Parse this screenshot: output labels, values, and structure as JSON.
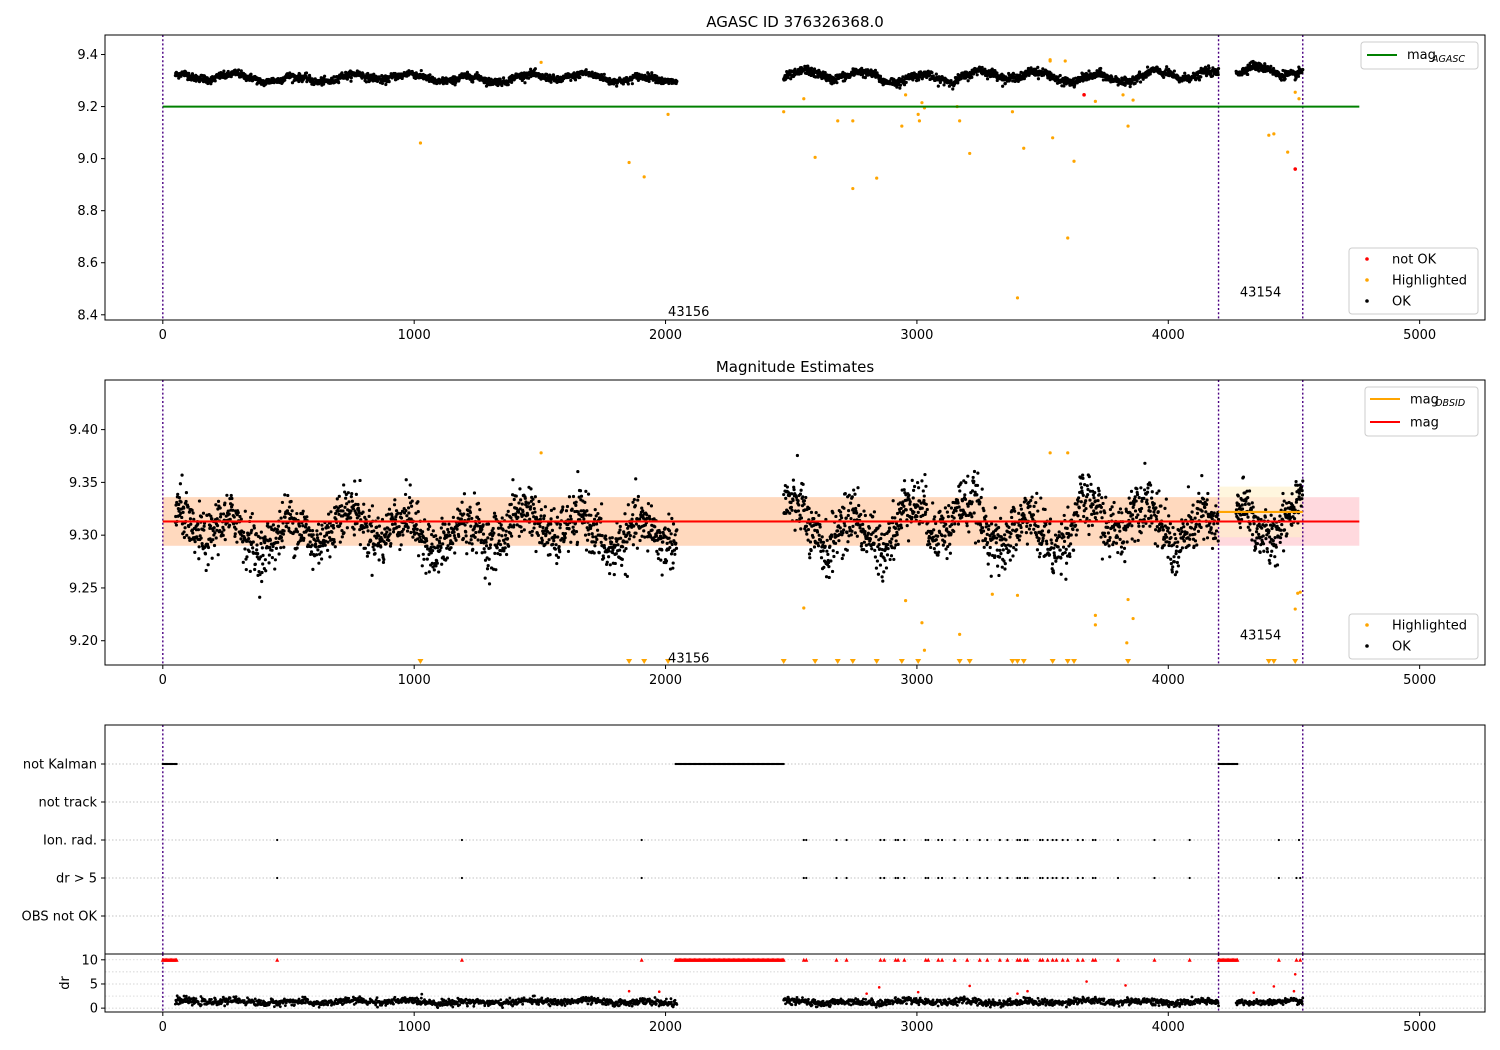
{
  "chart_data": [
    {
      "id": "agasc",
      "type": "scatter",
      "title": "AGASC ID 376326368.0",
      "xlim": [
        -230,
        5260
      ],
      "ylim": [
        8.38,
        9.475
      ],
      "xticks": [
        0,
        1000,
        2000,
        3000,
        4000,
        5000
      ],
      "xtick_labels": [
        "0",
        "1000",
        "2000",
        "3000",
        "4000",
        "5000"
      ],
      "yticks": [
        8.4,
        8.6,
        8.8,
        9.0,
        9.2,
        9.4
      ],
      "ytick_labels": [
        "8.4",
        "8.6",
        "8.8",
        "9.0",
        "9.2",
        "9.4"
      ],
      "obsid_boundaries": [
        0,
        4200,
        4535
      ],
      "obsid_labels": [
        {
          "text": "43156",
          "x": 2010,
          "y": 8.41
        },
        {
          "text": "43154",
          "x": 4285,
          "y": 8.485
        }
      ],
      "reference_lines": [
        {
          "label": "mag_AGASC",
          "y": 9.2,
          "x": [
            0,
            4760
          ],
          "color": "#008000"
        }
      ],
      "ok_segments": [
        {
          "x0": 50,
          "x1": 2045,
          "n": 1500,
          "mean": 9.31,
          "amp": 0.022,
          "noise": 0.007
        },
        {
          "x0": 2470,
          "x1": 4200,
          "n": 1300,
          "mean": 9.315,
          "amp": 0.03,
          "noise": 0.008
        },
        {
          "x0": 4270,
          "x1": 4535,
          "n": 220,
          "mean": 9.33,
          "amp": 0.03,
          "noise": 0.008
        }
      ],
      "highlighted_points": [
        [
          1025,
          9.06
        ],
        [
          1505,
          9.37
        ],
        [
          2010,
          9.17
        ],
        [
          1855,
          8.985
        ],
        [
          1915,
          8.93
        ],
        [
          2470,
          9.18
        ],
        [
          2550,
          9.23
        ],
        [
          2595,
          9.005
        ],
        [
          2685,
          9.145
        ],
        [
          2745,
          9.145
        ],
        [
          2745,
          8.885
        ],
        [
          2840,
          8.925
        ],
        [
          2940,
          9.125
        ],
        [
          2955,
          9.245
        ],
        [
          3005,
          9.17
        ],
        [
          3010,
          9.145
        ],
        [
          3020,
          9.215
        ],
        [
          3030,
          9.195
        ],
        [
          3160,
          9.2
        ],
        [
          3170,
          9.145
        ],
        [
          3210,
          9.02
        ],
        [
          3380,
          9.18
        ],
        [
          3400,
          8.465
        ],
        [
          3425,
          9.04
        ],
        [
          3540,
          9.08
        ],
        [
          3600,
          8.695
        ],
        [
          3625,
          8.99
        ],
        [
          3710,
          9.22
        ],
        [
          3820,
          9.245
        ],
        [
          3840,
          9.125
        ],
        [
          3860,
          9.225
        ],
        [
          4400,
          9.09
        ],
        [
          4420,
          9.095
        ],
        [
          4475,
          9.025
        ],
        [
          4520,
          9.23
        ],
        [
          4505,
          9.255
        ],
        [
          3530,
          9.375
        ],
        [
          3590,
          9.375
        ],
        [
          3530,
          9.38
        ]
      ],
      "notok_points": [
        [
          3665,
          9.245
        ],
        [
          4505,
          8.96
        ]
      ],
      "legend": [
        {
          "label": "not OK",
          "color": "#ff0000"
        },
        {
          "label": "Highlighted",
          "color": "#ffa500"
        },
        {
          "label": "OK",
          "color": "#000000"
        }
      ],
      "line_legend": [
        {
          "label": "mag",
          "sub": "AGASC",
          "color": "#008000"
        }
      ]
    },
    {
      "id": "magest",
      "type": "scatter",
      "title": "Magnitude Estimates",
      "xlim": [
        -230,
        5260
      ],
      "ylim": [
        9.177,
        9.447
      ],
      "xticks": [
        0,
        1000,
        2000,
        3000,
        4000,
        5000
      ],
      "xtick_labels": [
        "0",
        "1000",
        "2000",
        "3000",
        "4000",
        "5000"
      ],
      "yticks": [
        9.2,
        9.25,
        9.3,
        9.35,
        9.4
      ],
      "ytick_labels": [
        "9.20",
        "9.25",
        "9.30",
        "9.35",
        "9.40"
      ],
      "obsid_boundaries": [
        0,
        4200,
        4535
      ],
      "obsid_labels": [
        {
          "text": "43156",
          "x": 2010,
          "y": 9.183
        },
        {
          "text": "43154",
          "x": 4285,
          "y": 9.205
        }
      ],
      "mag_line": {
        "y": 9.313,
        "x": [
          0,
          4760
        ],
        "band": [
          9.29,
          9.336
        ],
        "color": "#ff0000",
        "band_color": "#ffc0c8"
      },
      "obsid_mag_lines": [
        {
          "y": 9.313,
          "x": [
            0,
            4200
          ],
          "band": [
            9.29,
            9.336
          ],
          "color": "#ffa500",
          "band_color": "#ffd9a8"
        },
        {
          "y": 9.322,
          "x": [
            4200,
            4535
          ],
          "band": [
            9.298,
            9.346
          ],
          "color": "#ffa500",
          "band_color": "#fff0c8"
        }
      ],
      "ok_segments": [
        {
          "x0": 50,
          "x1": 2045,
          "n": 1500,
          "mean": 9.305,
          "amp": 0.025,
          "noise": 0.012
        },
        {
          "x0": 2470,
          "x1": 4200,
          "n": 1300,
          "mean": 9.31,
          "amp": 0.032,
          "noise": 0.013
        },
        {
          "x0": 4270,
          "x1": 4535,
          "n": 220,
          "mean": 9.32,
          "amp": 0.03,
          "noise": 0.012
        }
      ],
      "highlighted_points": [
        [
          2550,
          9.231
        ],
        [
          2955,
          9.238
        ],
        [
          3020,
          9.217
        ],
        [
          3030,
          9.191
        ],
        [
          3170,
          9.206
        ],
        [
          3300,
          9.244
        ],
        [
          3400,
          9.243
        ],
        [
          3710,
          9.215
        ],
        [
          3710,
          9.224
        ],
        [
          3835,
          9.198
        ],
        [
          3840,
          9.239
        ],
        [
          3860,
          9.221
        ],
        [
          4505,
          9.23
        ],
        [
          4515,
          9.245
        ],
        [
          4525,
          9.246
        ],
        [
          1505,
          9.378
        ],
        [
          3530,
          9.378
        ],
        [
          3600,
          9.378
        ]
      ],
      "clipped_markers": [
        1025,
        1855,
        1915,
        2010,
        2470,
        2595,
        2685,
        2745,
        2840,
        2940,
        3005,
        3170,
        3210,
        3380,
        3400,
        3425,
        3540,
        3600,
        3625,
        3840,
        4400,
        4420,
        4505
      ],
      "legend": [
        {
          "label": "Highlighted",
          "color": "#ffa500"
        },
        {
          "label": "OK",
          "color": "#000000"
        }
      ],
      "line_legend": [
        {
          "label": "mag",
          "sub": "OBSID",
          "color": "#ffa500"
        },
        {
          "label": "mag",
          "sub": "",
          "color": "#ff0000"
        }
      ]
    },
    {
      "id": "flags",
      "type": "scatter",
      "xlim": [
        -230,
        5260
      ],
      "categories": [
        "not Kalman",
        "not track",
        "Ion. rad.",
        "dr > 5",
        "OBS not OK"
      ],
      "obsid_boundaries": [
        0,
        4200,
        4535
      ],
      "not_kalman_ranges": [
        [
          0,
          55
        ],
        [
          2040,
          2470
        ],
        [
          4200,
          4275
        ]
      ],
      "ion_rad_x": [
        455,
        1190,
        1905,
        2550,
        2560,
        2680,
        2720,
        2855,
        2870,
        2915,
        2925,
        2950,
        3035,
        3045,
        3085,
        3100,
        3150,
        3200,
        3250,
        3280,
        3330,
        3360,
        3400,
        3410,
        3430,
        3440,
        3490,
        3500,
        3520,
        3540,
        3555,
        3580,
        3600,
        3640,
        3660,
        3700,
        3710,
        3800,
        3945,
        4085,
        4440,
        4520
      ],
      "dr5_x": [
        455,
        1190,
        1905,
        2550,
        2560,
        2680,
        2720,
        2855,
        2870,
        2915,
        2925,
        2950,
        3035,
        3045,
        3085,
        3100,
        3150,
        3200,
        3250,
        3280,
        3330,
        3360,
        3400,
        3410,
        3430,
        3440,
        3490,
        3500,
        3520,
        3540,
        3555,
        3580,
        3600,
        3640,
        3660,
        3700,
        3710,
        3800,
        3945,
        4085,
        4440,
        4510,
        4525
      ]
    },
    {
      "id": "dr",
      "type": "scatter",
      "xlim": [
        -230,
        5260
      ],
      "ylim": [
        -0.8,
        11.2
      ],
      "ylabel": "dr",
      "yticks": [
        0,
        5,
        10
      ],
      "ytick_labels": [
        "0",
        "5",
        "10"
      ],
      "xticks": [
        0,
        1000,
        2000,
        3000,
        4000,
        5000
      ],
      "xtick_labels": [
        "0",
        "1000",
        "2000",
        "3000",
        "4000",
        "5000"
      ],
      "obsid_boundaries": [
        0,
        4200,
        4535
      ],
      "cap_value": 10,
      "cap_ranges": [
        [
          0,
          55
        ],
        [
          2040,
          2470
        ],
        [
          4200,
          4275
        ]
      ],
      "cap_points_x": [
        455,
        1190,
        1905,
        2550,
        2560,
        2680,
        2720,
        2855,
        2870,
        2915,
        2925,
        2950,
        3035,
        3045,
        3085,
        3100,
        3150,
        3200,
        3250,
        3280,
        3330,
        3360,
        3400,
        3410,
        3430,
        3440,
        3490,
        3500,
        3520,
        3540,
        3555,
        3580,
        3600,
        3640,
        3660,
        3700,
        3710,
        3800,
        3945,
        4085,
        4440,
        4510,
        4525
      ],
      "red_points": [
        [
          1855,
          3.5
        ],
        [
          1975,
          3.4
        ],
        [
          2800,
          3.0
        ],
        [
          2850,
          4.3
        ],
        [
          3005,
          3.3
        ],
        [
          3210,
          4.6
        ],
        [
          3400,
          3.0
        ],
        [
          3440,
          3.5
        ],
        [
          3675,
          5.5
        ],
        [
          3830,
          4.7
        ],
        [
          4340,
          3.2
        ],
        [
          4420,
          4.5
        ],
        [
          4500,
          3.5
        ],
        [
          4505,
          7.0
        ]
      ],
      "ok_segments": [
        {
          "x0": 50,
          "x1": 2045,
          "n": 1100,
          "mean": 1.3,
          "amp": 0.4,
          "noise": 0.35
        },
        {
          "x0": 2470,
          "x1": 4200,
          "n": 950,
          "mean": 1.3,
          "amp": 0.4,
          "noise": 0.35
        },
        {
          "x0": 4270,
          "x1": 4535,
          "n": 150,
          "mean": 1.2,
          "amp": 0.3,
          "noise": 0.3
        }
      ]
    }
  ]
}
